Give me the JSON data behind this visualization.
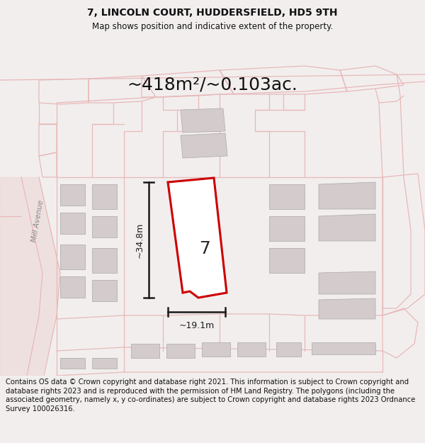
{
  "title": "7, LINCOLN COURT, HUDDERSFIELD, HD5 9TH",
  "subtitle": "Map shows position and indicative extent of the property.",
  "area_text": "~418m²/~0.103ac.",
  "width_label": "~19.1m",
  "height_label": "~34.8m",
  "property_number": "7",
  "footer": "Contains OS data © Crown copyright and database right 2021. This information is subject to Crown copyright and database rights 2023 and is reproduced with the permission of HM Land Registry. The polygons (including the associated geometry, namely x, y co-ordinates) are subject to Crown copyright and database rights 2023 Ordnance Survey 100026316.",
  "bg_color": "#f2eeee",
  "map_bg_color": "#ffffff",
  "road_color": "#e8b8b8",
  "building_color": "#d4cccc",
  "property_fill": "#ffffff",
  "property_edge": "#cc0000",
  "dim_color": "#1a1a1a",
  "title_fontsize": 10,
  "subtitle_fontsize": 8.5,
  "area_fontsize": 18,
  "footer_fontsize": 7.2,
  "road_lw": 0.9,
  "dim_lw": 1.8
}
